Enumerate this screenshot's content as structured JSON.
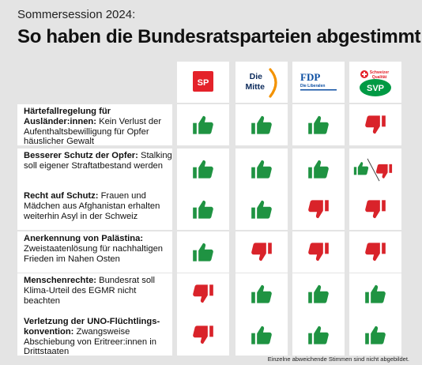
{
  "header": {
    "kicker": "Sommersession 2024:",
    "title": "So haben die Bundesratsparteien abgestimmt"
  },
  "parties": [
    {
      "id": "sp",
      "logo_text": "SP",
      "color": "#e4222a"
    },
    {
      "id": "mitte",
      "logo_text_1": "Die",
      "logo_text_2": "Mitte",
      "color": "#f39200"
    },
    {
      "id": "fdp",
      "logo_text_1": "FDP",
      "logo_text_2": "Die Liberalen",
      "color": "#0b4ea2"
    },
    {
      "id": "svp",
      "logo_text_1": "Schweizer",
      "logo_text_2": "Qualität",
      "logo_text_3": "SVP",
      "color": "#009a44"
    }
  ],
  "colors": {
    "yes": "#1f9342",
    "no": "#d9232a"
  },
  "icon_legend": {
    "yes": "thumb-up-icon",
    "no": "thumb-down-icon",
    "split": "split-vote-icon"
  },
  "rows": [
    {
      "title": "Härtefallregelung für Ausländer:innen:",
      "text": " Kein Verlust der Aufenthaltsbewilligung für Opfer häuslicher Gewalt",
      "votes": [
        "yes",
        "yes",
        "yes",
        "no"
      ]
    },
    {
      "title": "Besserer Schutz der Opfer:",
      "text": " Stalking soll eigener Straftatbestand werden",
      "votes": [
        "yes",
        "yes",
        "yes",
        "split"
      ]
    },
    {
      "title": "Recht auf Schutz:",
      "text": " Frauen und Mädchen aus Afghanistan erhalten weiterhin Asyl in der Schweiz",
      "votes": [
        "yes",
        "yes",
        "no",
        "no"
      ]
    },
    {
      "title": "Anerkennung von Palästina:",
      "text": " Zweistaatenlösung für nachhaltigen Frieden im Nahen Osten",
      "votes": [
        "yes",
        "no",
        "no",
        "no"
      ]
    },
    {
      "title": "Menschenrechte:",
      "text": " Bundesrat soll Klima-Urteil des EGMR nicht beachten",
      "votes": [
        "no",
        "yes",
        "yes",
        "yes"
      ]
    },
    {
      "title": "Verletzung der UNO-Flüchtlings-konvention:",
      "text": " Zwangsweise Abschiebung von Eritreer:innen in Drittstaaten",
      "votes": [
        "no",
        "yes",
        "yes",
        "yes"
      ]
    }
  ],
  "footer": "Einzelne abweichende Stimmen sind nicht abgebildet."
}
